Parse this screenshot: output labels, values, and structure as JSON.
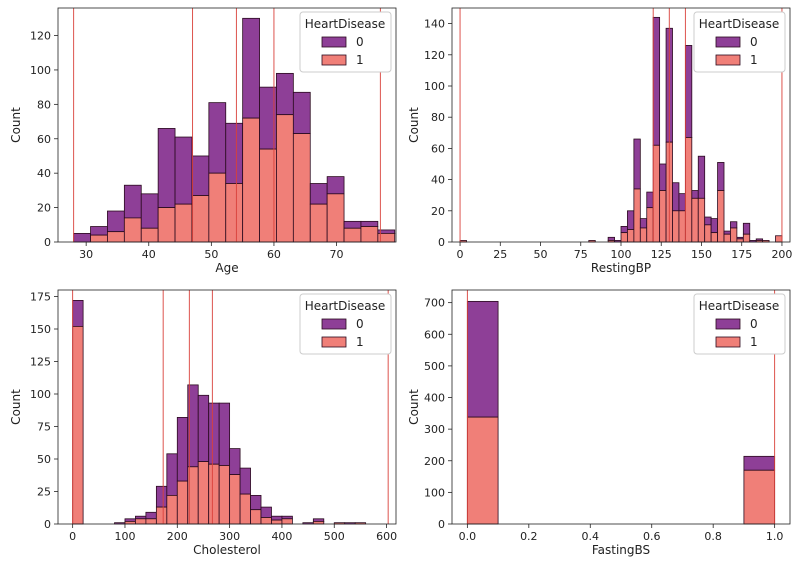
{
  "figure": {
    "colors": {
      "class0": "#8e3f97",
      "class1": "#f07f78",
      "edge": "#2a0a1e",
      "vline": "#d9403a"
    }
  },
  "chart_data": [
    {
      "type": "stacked-histogram",
      "id": "age",
      "xlabel": "Age",
      "ylabel": "Count",
      "xlim": [
        25.5,
        79.5
      ],
      "ylim": [
        0,
        136
      ],
      "xticks": [
        30,
        40,
        50,
        60,
        70
      ],
      "yticks": [
        0,
        20,
        40,
        60,
        80,
        100,
        120
      ],
      "vlines": [
        28,
        47,
        54,
        60,
        77
      ],
      "legend": {
        "title": "HeartDisease",
        "labels": [
          "0",
          "1"
        ],
        "position": "top-right"
      },
      "bins": [
        {
          "x0": 28,
          "x1": 30.7,
          "total": 5,
          "class1": 0
        },
        {
          "x0": 30.7,
          "x1": 33.4,
          "total": 9,
          "class1": 4
        },
        {
          "x0": 33.4,
          "x1": 36.1,
          "total": 18,
          "class1": 6
        },
        {
          "x0": 36.1,
          "x1": 38.8,
          "total": 33,
          "class1": 14
        },
        {
          "x0": 38.8,
          "x1": 41.5,
          "total": 28,
          "class1": 8
        },
        {
          "x0": 41.5,
          "x1": 44.2,
          "total": 66,
          "class1": 20
        },
        {
          "x0": 44.2,
          "x1": 46.9,
          "total": 61,
          "class1": 22
        },
        {
          "x0": 46.9,
          "x1": 49.6,
          "total": 50,
          "class1": 27
        },
        {
          "x0": 49.6,
          "x1": 52.3,
          "total": 81,
          "class1": 40
        },
        {
          "x0": 52.3,
          "x1": 55.0,
          "total": 69,
          "class1": 34
        },
        {
          "x0": 55.0,
          "x1": 57.7,
          "total": 130,
          "class1": 72
        },
        {
          "x0": 57.7,
          "x1": 60.4,
          "total": 90,
          "class1": 54
        },
        {
          "x0": 60.4,
          "x1": 63.1,
          "total": 98,
          "class1": 74
        },
        {
          "x0": 63.1,
          "x1": 65.8,
          "total": 87,
          "class1": 63
        },
        {
          "x0": 65.8,
          "x1": 68.5,
          "total": 34,
          "class1": 22
        },
        {
          "x0": 68.5,
          "x1": 71.2,
          "total": 38,
          "class1": 28
        },
        {
          "x0": 71.2,
          "x1": 73.9,
          "total": 12,
          "class1": 8
        },
        {
          "x0": 73.9,
          "x1": 76.6,
          "total": 12,
          "class1": 9
        },
        {
          "x0": 76.6,
          "x1": 79.3,
          "total": 7,
          "class1": 5
        }
      ]
    },
    {
      "type": "stacked-histogram",
      "id": "restingbp",
      "xlabel": "RestingBP",
      "ylabel": "Count",
      "xlim": [
        -5,
        205
      ],
      "ylim": [
        0,
        150
      ],
      "xticks": [
        0,
        25,
        50,
        75,
        100,
        125,
        150,
        175,
        200
      ],
      "yticks": [
        0,
        20,
        40,
        60,
        80,
        100,
        120,
        140
      ],
      "vlines": [
        0,
        120,
        130,
        140,
        200
      ],
      "legend": {
        "title": "HeartDisease",
        "labels": [
          "0",
          "1"
        ],
        "position": "top-right"
      },
      "bins": [
        {
          "x0": 0,
          "x1": 4,
          "total": 1,
          "class1": 1
        },
        {
          "x0": 80,
          "x1": 84,
          "total": 1,
          "class1": 1
        },
        {
          "x0": 92,
          "x1": 96,
          "total": 3,
          "class1": 1
        },
        {
          "x0": 96,
          "x1": 100,
          "total": 1,
          "class1": 0
        },
        {
          "x0": 100,
          "x1": 104,
          "total": 10,
          "class1": 6
        },
        {
          "x0": 104,
          "x1": 108,
          "total": 20,
          "class1": 8
        },
        {
          "x0": 108,
          "x1": 112,
          "total": 66,
          "class1": 34
        },
        {
          "x0": 112,
          "x1": 116,
          "total": 15,
          "class1": 9
        },
        {
          "x0": 116,
          "x1": 120,
          "total": 32,
          "class1": 22
        },
        {
          "x0": 120,
          "x1": 124,
          "total": 144,
          "class1": 62
        },
        {
          "x0": 124,
          "x1": 128,
          "total": 50,
          "class1": 33
        },
        {
          "x0": 128,
          "x1": 132,
          "total": 137,
          "class1": 64
        },
        {
          "x0": 132,
          "x1": 136,
          "total": 38,
          "class1": 20
        },
        {
          "x0": 136,
          "x1": 140,
          "total": 31,
          "class1": 20
        },
        {
          "x0": 140,
          "x1": 144,
          "total": 126,
          "class1": 67
        },
        {
          "x0": 144,
          "x1": 148,
          "total": 33,
          "class1": 28
        },
        {
          "x0": 148,
          "x1": 152,
          "total": 55,
          "class1": 28
        },
        {
          "x0": 152,
          "x1": 156,
          "total": 16,
          "class1": 11
        },
        {
          "x0": 156,
          "x1": 160,
          "total": 15,
          "class1": 6
        },
        {
          "x0": 160,
          "x1": 164,
          "total": 51,
          "class1": 33
        },
        {
          "x0": 164,
          "x1": 168,
          "total": 7,
          "class1": 5
        },
        {
          "x0": 168,
          "x1": 172,
          "total": 13,
          "class1": 9
        },
        {
          "x0": 172,
          "x1": 176,
          "total": 3,
          "class1": 2
        },
        {
          "x0": 176,
          "x1": 180,
          "total": 12,
          "class1": 5
        },
        {
          "x0": 180,
          "x1": 184,
          "total": 1,
          "class1": 0
        },
        {
          "x0": 184,
          "x1": 188,
          "total": 2,
          "class1": 1
        },
        {
          "x0": 188,
          "x1": 192,
          "total": 1,
          "class1": 1
        },
        {
          "x0": 196,
          "x1": 200,
          "total": 4,
          "class1": 4
        }
      ]
    },
    {
      "type": "stacked-histogram",
      "id": "cholesterol",
      "xlabel": "Cholesterol",
      "ylabel": "Count",
      "xlim": [
        -28,
        618
      ],
      "ylim": [
        0,
        180
      ],
      "xticks": [
        0,
        100,
        200,
        300,
        400,
        500,
        600
      ],
      "yticks": [
        0,
        25,
        50,
        75,
        100,
        125,
        150,
        175
      ],
      "vlines": [
        0,
        173,
        223,
        267,
        603
      ],
      "legend": {
        "title": "HeartDisease",
        "labels": [
          "0",
          "1"
        ],
        "position": "top-right"
      },
      "bins": [
        {
          "x0": 0,
          "x1": 20,
          "total": 172,
          "class1": 152
        },
        {
          "x0": 80,
          "x1": 100,
          "total": 1,
          "class1": 0
        },
        {
          "x0": 100,
          "x1": 120,
          "total": 4,
          "class1": 2
        },
        {
          "x0": 120,
          "x1": 140,
          "total": 6,
          "class1": 4
        },
        {
          "x0": 140,
          "x1": 160,
          "total": 9,
          "class1": 4
        },
        {
          "x0": 160,
          "x1": 180,
          "total": 29,
          "class1": 13
        },
        {
          "x0": 180,
          "x1": 200,
          "total": 54,
          "class1": 22
        },
        {
          "x0": 200,
          "x1": 220,
          "total": 82,
          "class1": 33
        },
        {
          "x0": 220,
          "x1": 240,
          "total": 107,
          "class1": 44
        },
        {
          "x0": 240,
          "x1": 260,
          "total": 99,
          "class1": 48
        },
        {
          "x0": 260,
          "x1": 280,
          "total": 93,
          "class1": 46
        },
        {
          "x0": 280,
          "x1": 300,
          "total": 93,
          "class1": 45
        },
        {
          "x0": 300,
          "x1": 320,
          "total": 58,
          "class1": 38
        },
        {
          "x0": 320,
          "x1": 340,
          "total": 43,
          "class1": 23
        },
        {
          "x0": 340,
          "x1": 360,
          "total": 22,
          "class1": 11
        },
        {
          "x0": 360,
          "x1": 380,
          "total": 13,
          "class1": 5
        },
        {
          "x0": 380,
          "x1": 400,
          "total": 6,
          "class1": 3
        },
        {
          "x0": 400,
          "x1": 420,
          "total": 6,
          "class1": 4
        },
        {
          "x0": 440,
          "x1": 460,
          "total": 1,
          "class1": 0
        },
        {
          "x0": 460,
          "x1": 480,
          "total": 4,
          "class1": 2
        },
        {
          "x0": 500,
          "x1": 520,
          "total": 1,
          "class1": 1
        },
        {
          "x0": 520,
          "x1": 540,
          "total": 1,
          "class1": 0
        },
        {
          "x0": 540,
          "x1": 560,
          "total": 1,
          "class1": 1
        }
      ]
    },
    {
      "type": "stacked-histogram",
      "id": "fastingbs",
      "xlabel": "FastingBS",
      "ylabel": "Count",
      "xlim": [
        -0.05,
        1.05
      ],
      "ylim": [
        0,
        740
      ],
      "xticks": [
        0.0,
        0.2,
        0.4,
        0.6,
        0.8,
        1.0
      ],
      "xtick_labels": [
        "0.0",
        "0.2",
        "0.4",
        "0.6",
        "0.8",
        "1.0"
      ],
      "yticks": [
        0,
        100,
        200,
        300,
        400,
        500,
        600,
        700
      ],
      "vlines": [
        0,
        1
      ],
      "legend": {
        "title": "HeartDisease",
        "labels": [
          "0",
          "1"
        ],
        "position": "top-right"
      },
      "bins": [
        {
          "x0": 0.0,
          "x1": 0.1,
          "total": 704,
          "class1": 338
        },
        {
          "x0": 0.9,
          "x1": 1.0,
          "total": 214,
          "class1": 170
        }
      ]
    }
  ]
}
